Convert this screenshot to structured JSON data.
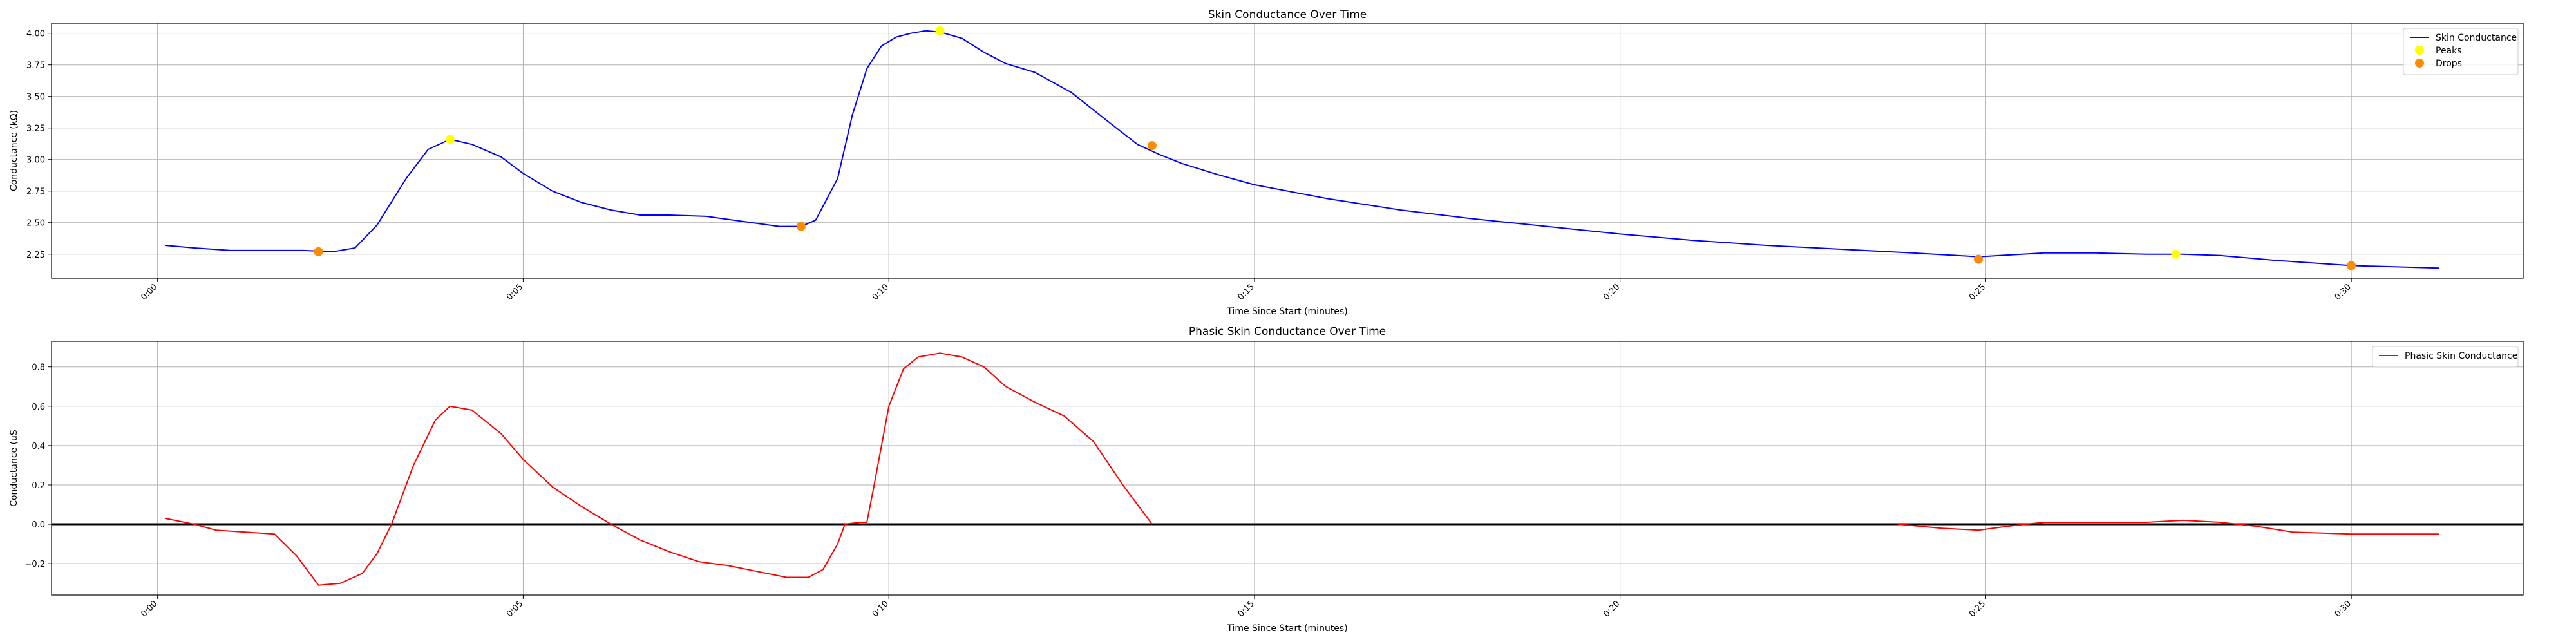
{
  "chart_data": [
    {
      "type": "line",
      "title": "Skin Conductance Over Time",
      "xlabel": "Time Since Start (minutes)",
      "ylabel": "Conductance (kΩ)",
      "xlim": [
        -0.0145,
        0.3235
      ],
      "ylim": [
        2.06,
        4.08
      ],
      "x_ticks": [
        0.0,
        0.05,
        0.1,
        0.15,
        0.2,
        0.25,
        0.3
      ],
      "x_tick_labels": [
        "0:00",
        "0:05",
        "0:10",
        "0:15",
        "0:20",
        "0:25",
        "0:30"
      ],
      "y_ticks": [
        2.25,
        2.5,
        2.75,
        3.0,
        3.25,
        3.5,
        3.75,
        4.0
      ],
      "y_tick_labels": [
        "2.25",
        "2.50",
        "2.75",
        "3.00",
        "3.25",
        "3.50",
        "3.75",
        "4.00"
      ],
      "grid": true,
      "legend_position": "upper right",
      "series": [
        {
          "name": "Skin Conductance",
          "color": "#0000ff",
          "kind": "line",
          "x": [
            0.001,
            0.005,
            0.01,
            0.015,
            0.02,
            0.024,
            0.027,
            0.03,
            0.034,
            0.037,
            0.04,
            0.043,
            0.047,
            0.05,
            0.054,
            0.058,
            0.062,
            0.066,
            0.07,
            0.075,
            0.08,
            0.085,
            0.088,
            0.09,
            0.093,
            0.095,
            0.097,
            0.099,
            0.101,
            0.103,
            0.105,
            0.107,
            0.11,
            0.113,
            0.116,
            0.12,
            0.125,
            0.13,
            0.134,
            0.137,
            0.14,
            0.145,
            0.15,
            0.16,
            0.17,
            0.18,
            0.19,
            0.2,
            0.21,
            0.22,
            0.23,
            0.24,
            0.249,
            0.252,
            0.258,
            0.265,
            0.272,
            0.277,
            0.282,
            0.29,
            0.3,
            0.312
          ],
          "y": [
            2.32,
            2.3,
            2.28,
            2.28,
            2.28,
            2.27,
            2.3,
            2.48,
            2.85,
            3.08,
            3.16,
            3.12,
            3.02,
            2.89,
            2.75,
            2.66,
            2.6,
            2.56,
            2.56,
            2.55,
            2.51,
            2.47,
            2.47,
            2.52,
            2.85,
            3.35,
            3.72,
            3.9,
            3.97,
            4.0,
            4.02,
            4.01,
            3.96,
            3.85,
            3.76,
            3.69,
            3.53,
            3.3,
            3.12,
            3.04,
            2.97,
            2.88,
            2.8,
            2.69,
            2.6,
            2.53,
            2.47,
            2.41,
            2.36,
            2.32,
            2.29,
            2.26,
            2.23,
            2.24,
            2.26,
            2.26,
            2.25,
            2.25,
            2.24,
            2.2,
            2.16,
            2.14
          ]
        },
        {
          "name": "Peaks",
          "color": "#ffff00",
          "kind": "scatter",
          "x": [
            0.04,
            0.107,
            0.276
          ],
          "y": [
            3.16,
            4.02,
            2.25
          ]
        },
        {
          "name": "Drops",
          "color": "#ff8c00",
          "kind": "scatter",
          "x": [
            0.022,
            0.088,
            0.136,
            0.249,
            0.3
          ],
          "y": [
            2.27,
            2.47,
            3.11,
            2.21,
            2.16
          ]
        }
      ]
    },
    {
      "type": "line",
      "title": "Phasic Skin Conductance Over Time",
      "xlabel": "Time Since Start (minutes)",
      "ylabel": "Conductance (uS",
      "xlim": [
        -0.0145,
        0.3235
      ],
      "ylim": [
        -0.36,
        0.93
      ],
      "x_ticks": [
        0.0,
        0.05,
        0.1,
        0.15,
        0.2,
        0.25,
        0.3
      ],
      "x_tick_labels": [
        "0:00",
        "0:05",
        "0:10",
        "0:15",
        "0:20",
        "0:25",
        "0:30"
      ],
      "y_ticks": [
        -0.2,
        0.0,
        0.2,
        0.4,
        0.6,
        0.8
      ],
      "y_tick_labels": [
        "−0.2",
        "0.0",
        "0.2",
        "0.4",
        "0.6",
        "0.8"
      ],
      "grid": true,
      "legend_position": "upper right",
      "reference_line": 0,
      "series": [
        {
          "name": "Phasic Skin Conductance",
          "color": "#ff0000",
          "kind": "line",
          "segments": [
            {
              "x": [
                0.001,
                0.005,
                0.008,
                0.012,
                0.016,
                0.019,
                0.022,
                0.025,
                0.028,
                0.03,
                0.032,
                0.035,
                0.038,
                0.04,
                0.043,
                0.047,
                0.05,
                0.054,
                0.058,
                0.062,
                0.066,
                0.07,
                0.074,
                0.078,
                0.082,
                0.086,
                0.089,
                0.091,
                0.093,
                0.094,
                0.096,
                0.097,
                0.098,
                0.1,
                0.102,
                0.104,
                0.107,
                0.11,
                0.113,
                0.116,
                0.12,
                0.124,
                0.128,
                0.132,
                0.136
              ],
              "y": [
                0.03,
                0.0,
                -0.03,
                -0.04,
                -0.05,
                -0.16,
                -0.31,
                -0.3,
                -0.25,
                -0.15,
                0.0,
                0.3,
                0.53,
                0.6,
                0.58,
                0.46,
                0.33,
                0.19,
                0.09,
                0.0,
                -0.08,
                -0.14,
                -0.19,
                -0.21,
                -0.24,
                -0.27,
                -0.27,
                -0.23,
                -0.1,
                0.0,
                0.01,
                0.01,
                0.2,
                0.6,
                0.79,
                0.85,
                0.87,
                0.85,
                0.8,
                0.7,
                0.62,
                0.55,
                0.42,
                0.2,
                0.0
              ]
            },
            {
              "x": [
                0.238,
                0.244,
                0.249,
                0.253,
                0.258,
                0.265,
                0.272,
                0.277,
                0.282,
                0.287,
                0.292,
                0.3,
                0.312
              ],
              "y": [
                0.0,
                -0.02,
                -0.03,
                -0.01,
                0.01,
                0.01,
                0.01,
                0.02,
                0.01,
                -0.01,
                -0.04,
                -0.05,
                -0.05
              ]
            }
          ]
        }
      ]
    }
  ]
}
